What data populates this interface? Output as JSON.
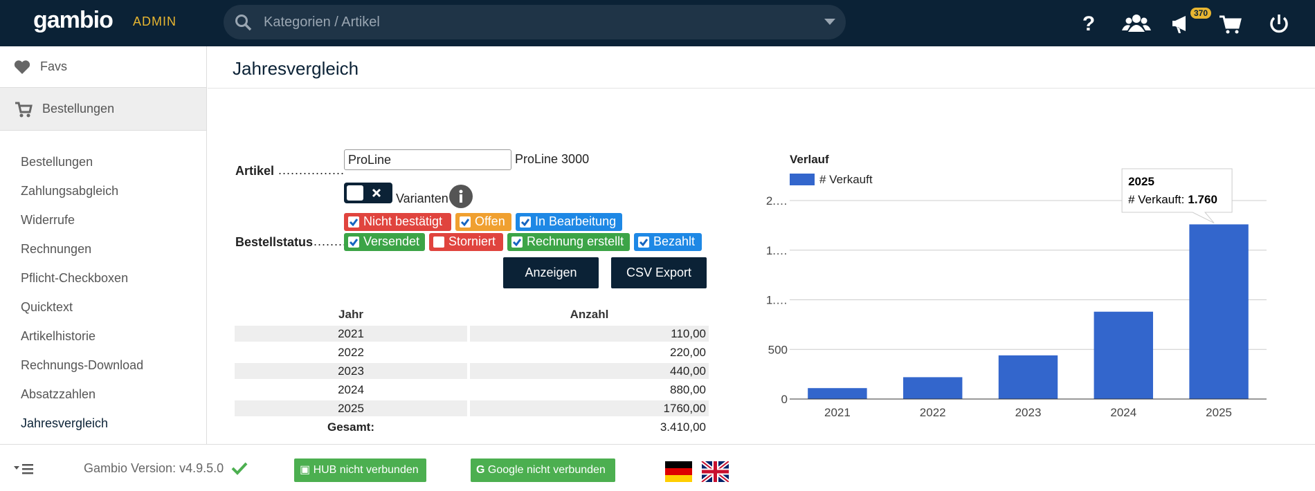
{
  "header": {
    "logo": "gambio",
    "admin": "ADMIN",
    "search_placeholder": "Kategorien / Artikel",
    "badge": "370"
  },
  "sidebar": {
    "favs": "Favs",
    "section": "Bestellungen",
    "items": [
      "Bestellungen",
      "Zahlungsabgleich",
      "Widerrufe",
      "Rechnungen",
      "Pflicht-Checkboxen",
      "Quicktext",
      "Artikelhistorie",
      "Rechnungs-Download",
      "Absatzzahlen",
      "Jahresvergleich"
    ]
  },
  "page": {
    "title": "Jahresvergleich"
  },
  "form": {
    "article_label": "Artikel",
    "article_input": "ProLine",
    "article_name": "ProLine 3000",
    "variants_label": "Varianten",
    "status_label": "Bestellstatus",
    "statuses": [
      {
        "label": "Nicht bestätigt",
        "checked": true,
        "color": "#e0443e"
      },
      {
        "label": "Offen",
        "checked": true,
        "color": "#f0a030"
      },
      {
        "label": "In Bearbeitung",
        "checked": true,
        "color": "#1e88e5"
      },
      {
        "label": "Versendet",
        "checked": true,
        "color": "#3ca447"
      },
      {
        "label": "Storniert",
        "checked": false,
        "color": "#e0443e"
      },
      {
        "label": "Rechnung erstellt",
        "checked": true,
        "color": "#3ca447"
      },
      {
        "label": "Bezahlt",
        "checked": true,
        "color": "#1e88e5"
      }
    ],
    "buttons": [
      "Anzeigen",
      "CSV Export"
    ]
  },
  "table": {
    "headers": [
      "Jahr",
      "Anzahl"
    ],
    "rows": [
      [
        "2021",
        "110,00"
      ],
      [
        "2022",
        "220,00"
      ],
      [
        "2023",
        "440,00"
      ],
      [
        "2024",
        "880,00"
      ],
      [
        "2025",
        "1760,00"
      ]
    ],
    "total_label": "Gesamt:",
    "total": "3.410,00"
  },
  "chart_data": {
    "type": "bar",
    "title": "Verlauf",
    "categories": [
      "2021",
      "2022",
      "2023",
      "2024",
      "2025"
    ],
    "series": [
      {
        "name": "# Verkauft",
        "color": "#3366cc",
        "values": [
          110,
          220,
          440,
          880,
          1760
        ]
      }
    ],
    "ylim": [
      0,
      2000
    ],
    "yticks": [
      0,
      500,
      {
        "value": 1000,
        "label": "1.…"
      },
      {
        "value": 1500,
        "label": "1.…"
      },
      {
        "value": 2000,
        "label": "2.…"
      }
    ],
    "grid": true,
    "tooltip": {
      "title": "2025",
      "label": "# Verkauft:",
      "value_label": "1.760"
    }
  },
  "footer": {
    "version": "Gambio Version: v4.9.5.0",
    "hub": "HUB nicht verbunden",
    "google": "Google nicht verbunden"
  }
}
